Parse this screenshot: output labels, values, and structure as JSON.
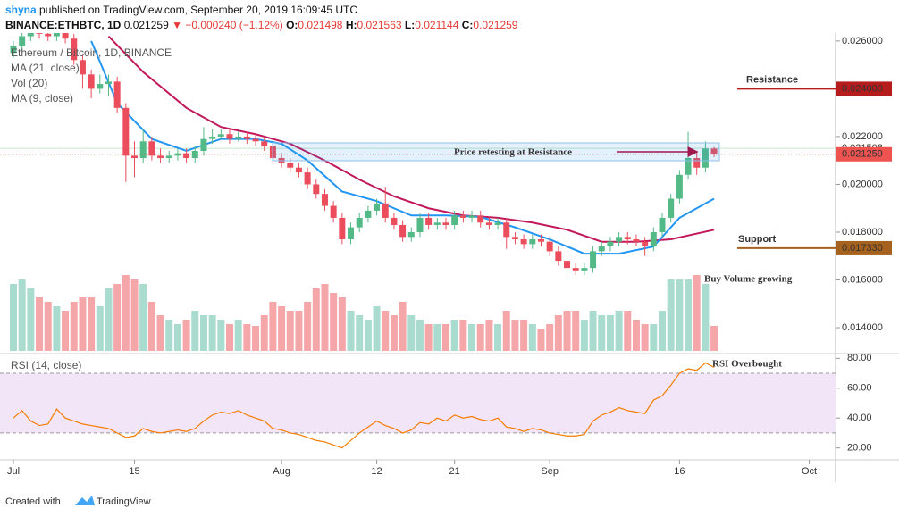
{
  "header": {
    "author": "shyna",
    "published": "published on TradingView.com, September 20, 2019 16:09:45 UTC",
    "quote": "BINANCE:ETHBTC, 1D",
    "change": "▼ −0.000240 (−1.12%)",
    "ohlc_labels": [
      "O:",
      "H:",
      "L:",
      "C:"
    ]
  },
  "footer": {
    "created": "Created with",
    "brand": "TradingView"
  },
  "chart_data": {
    "type": "candlestick",
    "title": "Ethereum / Bitcoin, 1D, BINANCE",
    "up_color": "#53b987",
    "down_color": "#eb4d5c",
    "x": [
      "Jul 1",
      "Jul 2",
      "Jul 3",
      "Jul 4",
      "Jul 5",
      "Jul 6",
      "Jul 7",
      "Jul 8",
      "Jul 9",
      "Jul 10",
      "Jul 11",
      "Jul 12",
      "Jul 13",
      "Jul 14",
      "Jul 15",
      "Jul 16",
      "Jul 17",
      "Jul 18",
      "Jul 19",
      "Jul 20",
      "Jul 21",
      "Jul 22",
      "Jul 23",
      "Jul 24",
      "Jul 25",
      "Jul 26",
      "Jul 27",
      "Jul 28",
      "Jul 29",
      "Jul 30",
      "Jul 31",
      "Aug 1",
      "Aug 2",
      "Aug 3",
      "Aug 4",
      "Aug 5",
      "Aug 6",
      "Aug 7",
      "Aug 8",
      "Aug 9",
      "Aug 10",
      "Aug 11",
      "Aug 12",
      "Aug 13",
      "Aug 14",
      "Aug 15",
      "Aug 16",
      "Aug 17",
      "Aug 18",
      "Aug 19",
      "Aug 20",
      "Aug 21",
      "Aug 22",
      "Aug 23",
      "Aug 24",
      "Aug 25",
      "Aug 26",
      "Aug 27",
      "Aug 28",
      "Aug 29",
      "Aug 30",
      "Aug 31",
      "Sep 1",
      "Sep 2",
      "Sep 3",
      "Sep 4",
      "Sep 5",
      "Sep 6",
      "Sep 7",
      "Sep 8",
      "Sep 9",
      "Sep 10",
      "Sep 11",
      "Sep 12",
      "Sep 13",
      "Sep 14",
      "Sep 15",
      "Sep 16",
      "Sep 17",
      "Sep 18",
      "Sep 19",
      "Sep 20"
    ],
    "open": [
      0.0255,
      0.0258,
      0.0262,
      0.0265,
      0.0263,
      0.0262,
      0.0264,
      0.0261,
      0.0252,
      0.0246,
      0.024,
      0.0242,
      0.0243,
      0.0232,
      0.0212,
      0.0211,
      0.0218,
      0.0212,
      0.0211,
      0.0212,
      0.0213,
      0.0211,
      0.0214,
      0.0219,
      0.022,
      0.0221,
      0.0219,
      0.022,
      0.0219,
      0.0218,
      0.0216,
      0.0211,
      0.0209,
      0.0207,
      0.0205,
      0.02,
      0.0196,
      0.0191,
      0.0186,
      0.0177,
      0.0182,
      0.0186,
      0.0189,
      0.0192,
      0.0186,
      0.0183,
      0.0178,
      0.018,
      0.0186,
      0.0183,
      0.0184,
      0.0183,
      0.0187,
      0.0186,
      0.0187,
      0.0184,
      0.0183,
      0.0184,
      0.0178,
      0.0177,
      0.0175,
      0.0177,
      0.0176,
      0.0172,
      0.0168,
      0.0165,
      0.0164,
      0.0165,
      0.0172,
      0.0174,
      0.0176,
      0.0178,
      0.0177,
      0.0176,
      0.0174,
      0.018,
      0.0186,
      0.0194,
      0.0204,
      0.0211,
      0.0207,
      0.021498
    ],
    "high": [
      0.026,
      0.0264,
      0.0267,
      0.0267,
      0.0265,
      0.0266,
      0.0266,
      0.0263,
      0.0254,
      0.0248,
      0.0246,
      0.0246,
      0.0245,
      0.0234,
      0.0218,
      0.0223,
      0.022,
      0.0215,
      0.0214,
      0.0215,
      0.0215,
      0.0216,
      0.0224,
      0.0223,
      0.0223,
      0.0223,
      0.0222,
      0.0222,
      0.0221,
      0.022,
      0.0218,
      0.0213,
      0.0211,
      0.0209,
      0.0207,
      0.0202,
      0.0198,
      0.0193,
      0.0188,
      0.0184,
      0.0188,
      0.0191,
      0.0194,
      0.0199,
      0.0188,
      0.0185,
      0.0182,
      0.0188,
      0.0188,
      0.0186,
      0.0186,
      0.0189,
      0.0189,
      0.0189,
      0.0189,
      0.0186,
      0.0186,
      0.0186,
      0.018,
      0.0179,
      0.0179,
      0.0179,
      0.0178,
      0.0174,
      0.017,
      0.0167,
      0.0167,
      0.0174,
      0.0176,
      0.0178,
      0.018,
      0.018,
      0.0179,
      0.0178,
      0.0182,
      0.0188,
      0.0196,
      0.0206,
      0.0222,
      0.0214,
      0.0218,
      0.021563
    ],
    "low": [
      0.0253,
      0.0256,
      0.026,
      0.0261,
      0.026,
      0.026,
      0.0259,
      0.025,
      0.024,
      0.0236,
      0.0238,
      0.0237,
      0.023,
      0.0201,
      0.0203,
      0.0209,
      0.021,
      0.0209,
      0.0209,
      0.021,
      0.0209,
      0.0209,
      0.0212,
      0.0217,
      0.0219,
      0.0217,
      0.0218,
      0.0217,
      0.0216,
      0.0214,
      0.0209,
      0.0207,
      0.0205,
      0.0203,
      0.0198,
      0.0194,
      0.0189,
      0.0184,
      0.0175,
      0.0175,
      0.018,
      0.0184,
      0.0187,
      0.0184,
      0.0181,
      0.0176,
      0.0176,
      0.0178,
      0.0181,
      0.0181,
      0.0181,
      0.0181,
      0.0184,
      0.0184,
      0.0182,
      0.0181,
      0.0181,
      0.0173,
      0.0175,
      0.0173,
      0.0173,
      0.0174,
      0.017,
      0.0166,
      0.0163,
      0.0162,
      0.0162,
      0.0163,
      0.017,
      0.0172,
      0.0174,
      0.0175,
      0.0174,
      0.017,
      0.0172,
      0.0178,
      0.0184,
      0.0192,
      0.0202,
      0.0204,
      0.0205,
      0.021144
    ],
    "close": [
      0.0258,
      0.0262,
      0.0265,
      0.0263,
      0.0262,
      0.0264,
      0.0261,
      0.0252,
      0.0246,
      0.024,
      0.0242,
      0.0243,
      0.0232,
      0.0212,
      0.0211,
      0.0218,
      0.0212,
      0.0211,
      0.0212,
      0.0213,
      0.0211,
      0.0214,
      0.0219,
      0.022,
      0.0221,
      0.0219,
      0.022,
      0.0219,
      0.0218,
      0.0216,
      0.0211,
      0.0209,
      0.0207,
      0.0205,
      0.02,
      0.0196,
      0.0191,
      0.0186,
      0.0177,
      0.0182,
      0.0186,
      0.0189,
      0.0192,
      0.0186,
      0.0183,
      0.0178,
      0.018,
      0.0186,
      0.0183,
      0.0184,
      0.0183,
      0.0187,
      0.0186,
      0.0187,
      0.0184,
      0.0183,
      0.0184,
      0.0178,
      0.0177,
      0.0175,
      0.0177,
      0.0176,
      0.0172,
      0.0168,
      0.0165,
      0.0164,
      0.0165,
      0.0172,
      0.0174,
      0.0176,
      0.0178,
      0.0177,
      0.0176,
      0.0174,
      0.018,
      0.0186,
      0.0194,
      0.0204,
      0.0211,
      0.0207,
      0.0215,
      0.021259
    ],
    "ylim": [
      0.01303,
      0.02622
    ],
    "yticks": [
      {
        "value": 0.026,
        "label": "0.026000"
      },
      {
        "value": 0.022,
        "label": "0.022000"
      },
      {
        "value": 0.02,
        "label": "0.020000"
      },
      {
        "value": 0.018,
        "label": "0.018000"
      },
      {
        "value": 0.016,
        "label": "0.016000"
      },
      {
        "value": 0.014,
        "label": "0.014000"
      }
    ],
    "xticks": [
      {
        "value": "Jul 1",
        "label": "Jul"
      },
      {
        "value": "Jul 15",
        "label": "15"
      },
      {
        "value": "Aug 1",
        "label": "Aug"
      },
      {
        "value": "Aug 12",
        "label": "12"
      },
      {
        "value": "Aug 21",
        "label": "21"
      },
      {
        "value": "Sep 1",
        "label": "Sep"
      },
      {
        "value": "Sep 16",
        "label": "16"
      },
      {
        "value": "Oct 1",
        "label": "Oct"
      }
    ],
    "volume": {
      "name": "Vol (20)",
      "up_color": "#a9dccf",
      "down_color": "#f5a6a9",
      "ylim": [
        0,
        100
      ],
      "values": [
        75,
        80,
        70,
        60,
        55,
        50,
        45,
        55,
        60,
        60,
        50,
        70,
        75,
        85,
        80,
        75,
        55,
        40,
        35,
        30,
        35,
        45,
        40,
        40,
        35,
        30,
        35,
        30,
        28,
        40,
        55,
        50,
        45,
        45,
        55,
        70,
        75,
        65,
        60,
        45,
        40,
        35,
        50,
        45,
        40,
        55,
        40,
        35,
        30,
        30,
        30,
        35,
        35,
        30,
        30,
        35,
        30,
        45,
        35,
        35,
        30,
        25,
        30,
        40,
        45,
        45,
        35,
        45,
        40,
        40,
        45,
        45,
        35,
        30,
        30,
        45,
        80,
        80,
        80,
        85,
        75,
        28
      ]
    },
    "ma": [
      {
        "name": "MA (21, close)",
        "color": "#c2185b",
        "x": [
          "Jul 12",
          "Jul 16",
          "Jul 21",
          "Jul 25",
          "Jul 29",
          "Aug 2",
          "Aug 6",
          "Aug 10",
          "Aug 14",
          "Aug 18",
          "Aug 22",
          "Aug 26",
          "Aug 30",
          "Sep 3",
          "Sep 7",
          "Sep 11",
          "Sep 15",
          "Sep 20"
        ],
        "values": [
          0.0262,
          0.0247,
          0.0232,
          0.0224,
          0.0221,
          0.0217,
          0.021,
          0.0202,
          0.0195,
          0.019,
          0.0187,
          0.0186,
          0.0184,
          0.0181,
          0.0176,
          0.0176,
          0.0177,
          0.0181
        ]
      },
      {
        "name": "MA (9, close)",
        "color": "#2196f3",
        "x": [
          "Jul 10",
          "Jul 13",
          "Jul 17",
          "Jul 21",
          "Jul 25",
          "Jul 29",
          "Aug 1",
          "Aug 4",
          "Aug 8",
          "Aug 12",
          "Aug 16",
          "Aug 20",
          "Aug 24",
          "Aug 28",
          "Sep 1",
          "Sep 5",
          "Sep 9",
          "Sep 13",
          "Sep 16",
          "Sep 20"
        ],
        "values": [
          0.026,
          0.0234,
          0.0219,
          0.0214,
          0.0219,
          0.0219,
          0.0217,
          0.021,
          0.0197,
          0.0193,
          0.0187,
          0.0187,
          0.01864,
          0.0182,
          0.0177,
          0.0171,
          0.0171,
          0.0174,
          0.0186,
          0.0194
        ]
      }
    ],
    "levels": [
      {
        "name": "Resistance",
        "value": 0.024,
        "label": "0.024000",
        "color": "#b71c1c"
      },
      {
        "name": "Support",
        "value": 0.01733,
        "label": "0.017330",
        "color": "#a5611e"
      }
    ],
    "marker": {
      "value": 0.021508,
      "label": "0.021508",
      "color": "#c8e6c9"
    },
    "last": {
      "value": 0.021259,
      "label": "0.021259",
      "color": "#ef5350"
    },
    "annotations": {
      "box": "Price retesting at Resistance",
      "volume": "Buy Volume growing",
      "rsi": "RSI Overbought"
    },
    "rsi": {
      "name": "RSI (14, close)",
      "color": "#f57c00",
      "band": [
        30,
        70
      ],
      "band_color": "#f3e5f8",
      "ylim": [
        12,
        82
      ],
      "yticks": [
        {
          "value": 80,
          "label": "80.00"
        },
        {
          "value": 60,
          "label": "60.00"
        },
        {
          "value": 40,
          "label": "40.00"
        },
        {
          "value": 20,
          "label": "20.00"
        }
      ],
      "values": [
        40,
        45,
        38,
        35,
        36,
        46,
        40,
        38,
        36,
        35,
        34,
        33,
        30,
        27,
        28,
        33,
        31,
        30,
        31,
        32,
        31,
        33,
        38,
        42,
        44,
        43,
        45,
        42,
        40,
        38,
        33,
        32,
        30,
        29,
        27,
        25,
        24,
        22,
        20,
        25,
        30,
        34,
        38,
        35,
        33,
        30,
        32,
        37,
        36,
        40,
        38,
        42,
        40,
        41,
        39,
        38,
        40,
        34,
        33,
        31,
        33,
        32,
        30,
        29,
        28,
        28,
        29,
        38,
        42,
        44,
        47,
        45,
        44,
        43,
        52,
        55,
        62,
        70,
        73,
        72,
        77,
        74
      ]
    }
  }
}
